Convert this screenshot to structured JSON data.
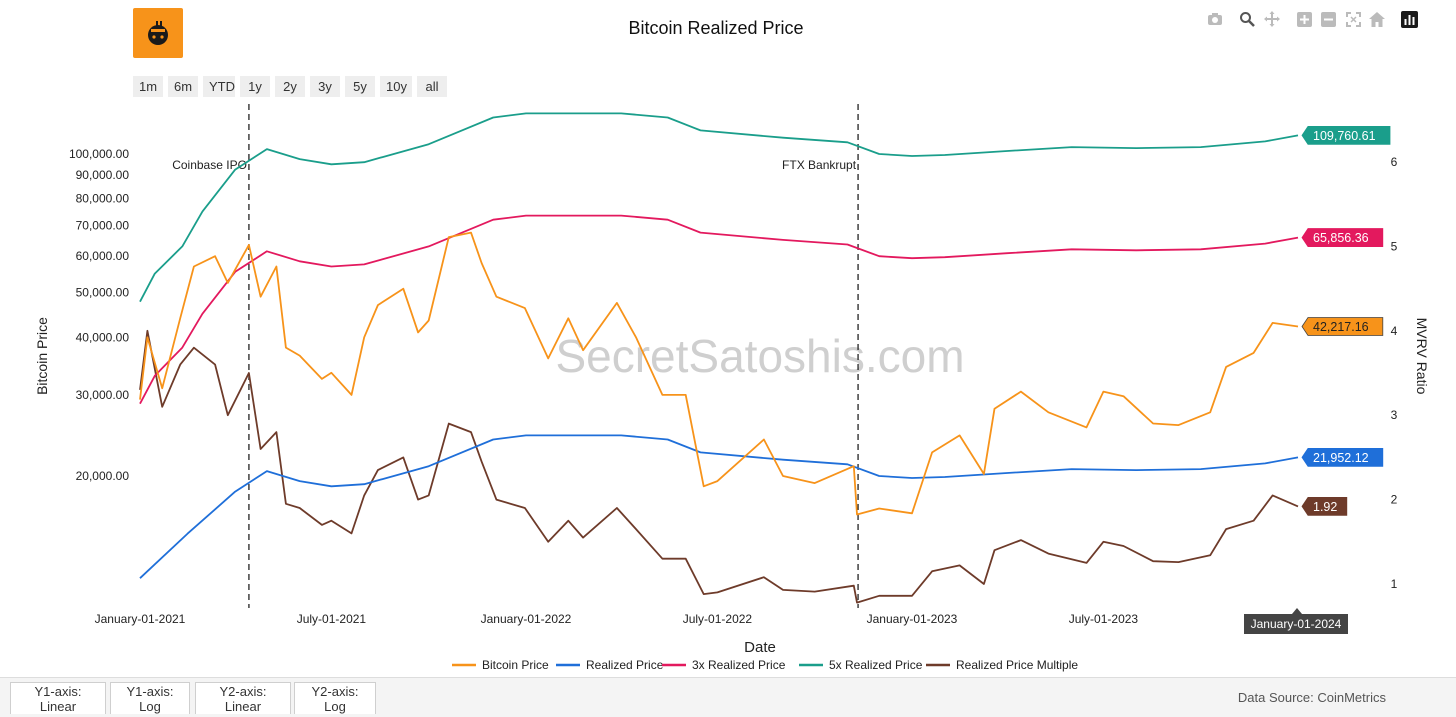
{
  "title": "Bitcoin Realized Price",
  "icons": [
    "camera-icon",
    "zoom-icon",
    "pan-icon",
    "zoom-in-icon",
    "zoom-out-icon",
    "autoscale-icon",
    "home-icon",
    "plotly-logo-icon"
  ],
  "range_buttons": [
    "1m",
    "6m",
    "YTD",
    "1y",
    "2y",
    "3y",
    "5y",
    "10y",
    "all"
  ],
  "tabs": [
    "Y1-axis: Linear",
    "Y1-axis: Log",
    "Y2-axis: Linear",
    "Y2-axis: Log"
  ],
  "data_source": "Data Source: CoinMetrics",
  "watermark": "SecretSatoshis.com",
  "colors": {
    "bitcoin_price": "#f7931a",
    "realized_price": "#1f6fd9",
    "realized_3x": "#e3195e",
    "realized_5x": "#1a9e8b",
    "multiple": "#6e3b2a",
    "logo": "#f7931a"
  },
  "chart_data": {
    "type": "line",
    "title": "Bitcoin Realized Price",
    "xlabel": "Date",
    "ylabel": "Bitcoin Price",
    "y2label": "MVRV Ratio",
    "x_ticks": [
      "January-01-2021",
      "July-01-2021",
      "January-01-2022",
      "July-01-2022",
      "January-01-2023",
      "July-01-2023"
    ],
    "y_scale": "log",
    "y_ticks": [
      "100,000.00",
      "90,000.00",
      "80,000.00",
      "70,000.00",
      "60,000.00",
      "50,000.00",
      "40,000.00",
      "30,000.00",
      "20,000.00"
    ],
    "y_tick_values": [
      100000,
      90000,
      80000,
      70000,
      60000,
      50000,
      40000,
      30000,
      20000
    ],
    "y2_ticks": [
      "6",
      "5",
      "4",
      "3",
      "2",
      "1"
    ],
    "y2_tick_values": [
      6,
      5,
      4,
      3,
      2,
      1
    ],
    "hover_x_label": "January-01-2024",
    "annotations": [
      {
        "date": "2021-04-14",
        "text": "Coinbase IPO"
      },
      {
        "date": "2022-11-11",
        "text": "FTX Bankrupt"
      }
    ],
    "legend_position": "bottom-center",
    "grid": false,
    "series": [
      {
        "name": "Bitcoin Price",
        "axis": "y",
        "end_label": "42,217.16",
        "points": [
          [
            "2021-01-01",
            29300
          ],
          [
            "2021-01-08",
            40000
          ],
          [
            "2021-01-22",
            31000
          ],
          [
            "2021-02-08",
            44000
          ],
          [
            "2021-02-21",
            57000
          ],
          [
            "2021-03-13",
            60000
          ],
          [
            "2021-03-25",
            52500
          ],
          [
            "2021-04-14",
            63500
          ],
          [
            "2021-04-25",
            49000
          ],
          [
            "2021-05-10",
            57000
          ],
          [
            "2021-05-19",
            38000
          ],
          [
            "2021-06-01",
            36500
          ],
          [
            "2021-06-22",
            32500
          ],
          [
            "2021-07-01",
            33500
          ],
          [
            "2021-07-20",
            30000
          ],
          [
            "2021-08-01",
            40000
          ],
          [
            "2021-08-14",
            47000
          ],
          [
            "2021-09-07",
            51000
          ],
          [
            "2021-09-21",
            41000
          ],
          [
            "2021-10-01",
            43500
          ],
          [
            "2021-10-20",
            66000
          ],
          [
            "2021-11-10",
            67500
          ],
          [
            "2021-11-20",
            58000
          ],
          [
            "2021-12-04",
            49000
          ],
          [
            "2021-12-31",
            46300
          ],
          [
            "2022-01-22",
            36000
          ],
          [
            "2022-02-10",
            44000
          ],
          [
            "2022-02-24",
            37500
          ],
          [
            "2022-03-28",
            47500
          ],
          [
            "2022-04-15",
            40000
          ],
          [
            "2022-05-10",
            30000
          ],
          [
            "2022-06-01",
            30000
          ],
          [
            "2022-06-18",
            19000
          ],
          [
            "2022-07-01",
            19500
          ],
          [
            "2022-08-14",
            24000
          ],
          [
            "2022-09-01",
            20000
          ],
          [
            "2022-10-01",
            19300
          ],
          [
            "2022-11-07",
            21000
          ],
          [
            "2022-11-10",
            16500
          ],
          [
            "2022-12-01",
            17000
          ],
          [
            "2023-01-01",
            16600
          ],
          [
            "2023-01-20",
            22500
          ],
          [
            "2023-02-15",
            24500
          ],
          [
            "2023-03-10",
            20200
          ],
          [
            "2023-03-20",
            28000
          ],
          [
            "2023-04-14",
            30500
          ],
          [
            "2023-05-10",
            27500
          ],
          [
            "2023-06-15",
            25500
          ],
          [
            "2023-07-01",
            30500
          ],
          [
            "2023-07-20",
            29800
          ],
          [
            "2023-08-17",
            26000
          ],
          [
            "2023-09-10",
            25800
          ],
          [
            "2023-10-10",
            27500
          ],
          [
            "2023-10-25",
            34500
          ],
          [
            "2023-11-20",
            37000
          ],
          [
            "2023-12-08",
            43000
          ],
          [
            "2024-01-01",
            42217
          ]
        ]
      },
      {
        "name": "Realized Price",
        "axis": "y",
        "end_label": "21,952.12",
        "points": [
          [
            "2021-01-01",
            12000
          ],
          [
            "2021-02-15",
            15000
          ],
          [
            "2021-04-01",
            18500
          ],
          [
            "2021-05-01",
            20500
          ],
          [
            "2021-06-01",
            19500
          ],
          [
            "2021-07-01",
            19000
          ],
          [
            "2021-08-01",
            19200
          ],
          [
            "2021-10-01",
            21000
          ],
          [
            "2021-12-01",
            24000
          ],
          [
            "2022-01-01",
            24500
          ],
          [
            "2022-04-01",
            24500
          ],
          [
            "2022-05-15",
            24000
          ],
          [
            "2022-06-15",
            22500
          ],
          [
            "2022-09-01",
            21700
          ],
          [
            "2022-11-01",
            21200
          ],
          [
            "2022-12-01",
            20000
          ],
          [
            "2023-01-01",
            19800
          ],
          [
            "2023-02-01",
            19900
          ],
          [
            "2023-04-01",
            20300
          ],
          [
            "2023-06-01",
            20700
          ],
          [
            "2023-08-01",
            20600
          ],
          [
            "2023-10-01",
            20700
          ],
          [
            "2023-12-01",
            21300
          ],
          [
            "2024-01-01",
            21952
          ]
        ]
      },
      {
        "name": "3x Realized Price",
        "axis": "y",
        "end_label": "65,856.36",
        "points": [
          [
            "2021-01-01",
            28700
          ],
          [
            "2021-01-15",
            33000
          ],
          [
            "2021-02-10",
            38000
          ],
          [
            "2021-03-01",
            45000
          ],
          [
            "2021-04-01",
            55500
          ],
          [
            "2021-05-01",
            61500
          ],
          [
            "2021-06-01",
            58500
          ],
          [
            "2021-07-01",
            57000
          ],
          [
            "2021-08-01",
            57600
          ],
          [
            "2021-10-01",
            63000
          ],
          [
            "2021-12-01",
            72000
          ],
          [
            "2022-01-01",
            73500
          ],
          [
            "2022-04-01",
            73500
          ],
          [
            "2022-05-15",
            72000
          ],
          [
            "2022-06-15",
            67500
          ],
          [
            "2022-09-01",
            65100
          ],
          [
            "2022-11-01",
            63600
          ],
          [
            "2022-12-01",
            60000
          ],
          [
            "2023-01-01",
            59400
          ],
          [
            "2023-02-01",
            59700
          ],
          [
            "2023-04-01",
            60900
          ],
          [
            "2023-06-01",
            62100
          ],
          [
            "2023-08-01",
            61800
          ],
          [
            "2023-10-01",
            62100
          ],
          [
            "2023-12-01",
            63900
          ],
          [
            "2024-01-01",
            65856
          ]
        ]
      },
      {
        "name": "5x Realized Price",
        "axis": "y",
        "end_label": "109,760.61",
        "points": [
          [
            "2021-01-01",
            47800
          ],
          [
            "2021-01-15",
            55000
          ],
          [
            "2021-02-10",
            63000
          ],
          [
            "2021-03-01",
            75000
          ],
          [
            "2021-04-01",
            92500
          ],
          [
            "2021-05-01",
            102500
          ],
          [
            "2021-06-01",
            97500
          ],
          [
            "2021-07-01",
            95000
          ],
          [
            "2021-08-01",
            96000
          ],
          [
            "2021-10-01",
            105000
          ],
          [
            "2021-12-01",
            120000
          ],
          [
            "2022-01-01",
            122500
          ],
          [
            "2022-04-01",
            122500
          ],
          [
            "2022-05-15",
            120000
          ],
          [
            "2022-06-15",
            112500
          ],
          [
            "2022-09-01",
            108500
          ],
          [
            "2022-11-01",
            106000
          ],
          [
            "2022-12-01",
            100000
          ],
          [
            "2023-01-01",
            99000
          ],
          [
            "2023-02-01",
            99500
          ],
          [
            "2023-04-01",
            101500
          ],
          [
            "2023-06-01",
            103500
          ],
          [
            "2023-08-01",
            103000
          ],
          [
            "2023-10-01",
            103500
          ],
          [
            "2023-12-01",
            106500
          ],
          [
            "2024-01-01",
            109760
          ]
        ]
      },
      {
        "name": "Realized Price Multiple",
        "axis": "y2",
        "end_label": "1.92",
        "points": [
          [
            "2021-01-01",
            3.3
          ],
          [
            "2021-01-08",
            4.0
          ],
          [
            "2021-01-22",
            3.1
          ],
          [
            "2021-02-08",
            3.6
          ],
          [
            "2021-02-21",
            3.8
          ],
          [
            "2021-03-13",
            3.6
          ],
          [
            "2021-03-25",
            3.0
          ],
          [
            "2021-04-14",
            3.5
          ],
          [
            "2021-04-25",
            2.6
          ],
          [
            "2021-05-10",
            2.8
          ],
          [
            "2021-05-19",
            1.95
          ],
          [
            "2021-06-01",
            1.9
          ],
          [
            "2021-06-22",
            1.7
          ],
          [
            "2021-07-01",
            1.75
          ],
          [
            "2021-07-20",
            1.6
          ],
          [
            "2021-08-01",
            2.05
          ],
          [
            "2021-08-14",
            2.35
          ],
          [
            "2021-09-07",
            2.5
          ],
          [
            "2021-09-21",
            2.0
          ],
          [
            "2021-10-01",
            2.05
          ],
          [
            "2021-10-20",
            2.9
          ],
          [
            "2021-11-10",
            2.8
          ],
          [
            "2021-11-20",
            2.45
          ],
          [
            "2021-12-04",
            2.0
          ],
          [
            "2021-12-31",
            1.9
          ],
          [
            "2022-01-22",
            1.5
          ],
          [
            "2022-02-10",
            1.75
          ],
          [
            "2022-02-24",
            1.55
          ],
          [
            "2022-03-28",
            1.9
          ],
          [
            "2022-04-15",
            1.65
          ],
          [
            "2022-05-10",
            1.3
          ],
          [
            "2022-06-01",
            1.3
          ],
          [
            "2022-06-18",
            0.88
          ],
          [
            "2022-07-01",
            0.9
          ],
          [
            "2022-08-14",
            1.08
          ],
          [
            "2022-09-01",
            0.93
          ],
          [
            "2022-10-01",
            0.91
          ],
          [
            "2022-11-07",
            0.98
          ],
          [
            "2022-11-10",
            0.78
          ],
          [
            "2022-12-01",
            0.86
          ],
          [
            "2023-01-01",
            0.86
          ],
          [
            "2023-01-20",
            1.15
          ],
          [
            "2023-02-15",
            1.22
          ],
          [
            "2023-03-10",
            1.0
          ],
          [
            "2023-03-20",
            1.4
          ],
          [
            "2023-04-14",
            1.52
          ],
          [
            "2023-05-10",
            1.36
          ],
          [
            "2023-06-15",
            1.25
          ],
          [
            "2023-07-01",
            1.5
          ],
          [
            "2023-07-20",
            1.45
          ],
          [
            "2023-08-17",
            1.27
          ],
          [
            "2023-09-10",
            1.26
          ],
          [
            "2023-10-10",
            1.34
          ],
          [
            "2023-10-25",
            1.65
          ],
          [
            "2023-11-20",
            1.75
          ],
          [
            "2023-12-08",
            2.05
          ],
          [
            "2024-01-01",
            1.92
          ]
        ]
      }
    ]
  }
}
